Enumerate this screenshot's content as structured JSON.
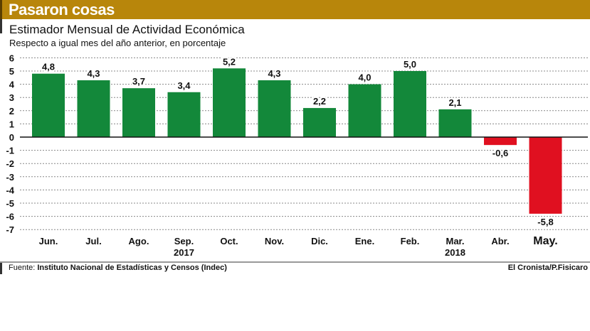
{
  "header": {
    "title": "Pasaron cosas"
  },
  "colors": {
    "header": "#b8860b",
    "positive": "#13883a",
    "negative": "#e01020",
    "axis": "#111111",
    "grid": "#888888"
  },
  "chart_data": {
    "type": "bar",
    "title": "Estimador Mensual de Actividad Económica",
    "subtitle": "Respecto a igual mes del año anterior, en porcentaje",
    "categories": [
      "Jun.",
      "Jul.",
      "Ago.",
      "Sep.",
      "Oct.",
      "Nov.",
      "Dic.",
      "Ene.",
      "Feb.",
      "Mar.",
      "Abr.",
      "May."
    ],
    "year_labels": [
      {
        "after_category": "Sep.",
        "label": "2017"
      },
      {
        "after_category": "Mar.",
        "label": "2018"
      }
    ],
    "values": [
      4.8,
      4.3,
      3.7,
      3.4,
      5.2,
      4.3,
      2.2,
      4.0,
      5.0,
      2.1,
      -0.6,
      -5.8
    ],
    "value_labels": [
      "4,8",
      "4,3",
      "3,7",
      "3,4",
      "5,2",
      "4,3",
      "2,2",
      "4,0",
      "5,0",
      "2,1",
      "-0,6",
      "-5,8"
    ],
    "highlight_category": "May.",
    "ylim": [
      -7,
      6
    ],
    "yticks": [
      6,
      5,
      4,
      3,
      2,
      1,
      0,
      -1,
      -2,
      -3,
      -4,
      -5,
      -6,
      -7
    ],
    "grid": true,
    "grid_style": "dotted",
    "xlabel": "",
    "ylabel": ""
  },
  "footer": {
    "source_prefix": "Fuente: ",
    "source": "Instituto Nacional de Estadísticas y Censos (Indec)",
    "credit": "El Cronista/P.Fisicaro"
  }
}
